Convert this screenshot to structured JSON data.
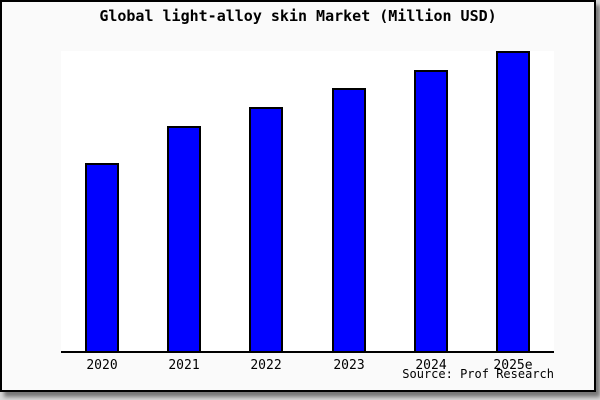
{
  "figure": {
    "title": "Global light-alloy skin Market (Million USD)",
    "source": "Source: Prof Research"
  },
  "colors": {
    "bar_fill": "#0000ff",
    "bar_edge": "#000000",
    "axis": "#000000",
    "plot_background": "#ffffff",
    "figure_background": "#fafafa",
    "figure_border": "#000000"
  },
  "chart_data": {
    "type": "bar",
    "title": "Global light-alloy skin Market (Million USD)",
    "categories": [
      "2020",
      "2021",
      "2022",
      "2023",
      "2024",
      "2025e"
    ],
    "values": [
      62.7,
      75.0,
      81.3,
      87.7,
      93.7,
      100.0
    ],
    "value_note": "relative heights indexed to 2025e = 100; no numeric y-axis scale is shown in the chart",
    "xlabel": "",
    "ylabel": "",
    "ylim": [
      0,
      100
    ],
    "y_axis_visible": false,
    "gridlines": false,
    "legend": false,
    "bar_value_labels": false,
    "annotation": "Source: Prof Research"
  }
}
